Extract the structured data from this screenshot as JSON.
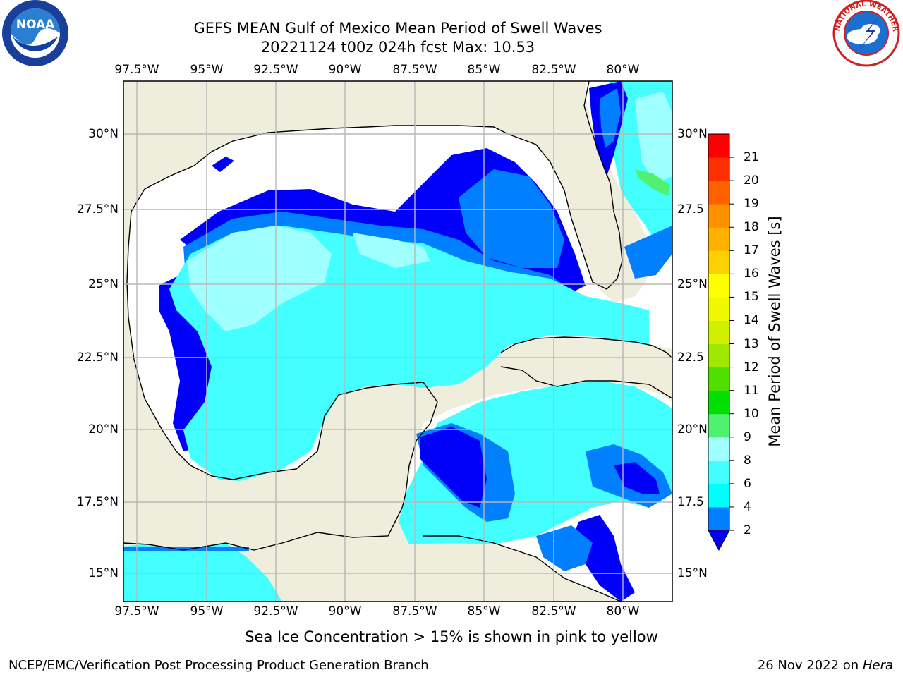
{
  "header": {
    "title": "GEFS MEAN Gulf of Mexico Mean Period of Swell Waves",
    "subtitle": "20221124 t00z 024h fcst   Max: 10.53"
  },
  "logos": {
    "left": {
      "text": "NOAA",
      "icon": "noaa-logo-icon"
    },
    "right": {
      "text": "NATIONAL WEATHER SERVICE",
      "icon": "nws-logo-icon"
    }
  },
  "map": {
    "lon_labels": [
      "97.5°W",
      "95°W",
      "92.5°W",
      "90°W",
      "87.5°W",
      "85°W",
      "82.5°W",
      "80°W"
    ],
    "lat_labels_left": [
      "30°N",
      "27.5°N",
      "25°N",
      "22.5°N",
      "20°N",
      "17.5°N",
      "15°N"
    ],
    "lat_labels_right": [
      "30°N",
      "27.5",
      "25°N",
      "22.5",
      "20°N",
      "17.5",
      "15°N"
    ],
    "lon_range": [
      -98,
      -79
    ],
    "lat_range": [
      14,
      31.8
    ],
    "gridlines": true,
    "colors": {
      "land": "#efeedd",
      "nodata": "#ffffff",
      "period_2_4": "#0000f8",
      "period_4_6": "#0080ff",
      "period_6_8": "#00ffff",
      "period_8_9": "#44ffff",
      "period_9_10": "#a0ffff"
    }
  },
  "colorbar": {
    "title": "Mean Period of Swell Waves [s]",
    "levels": [
      "2",
      "4",
      "6",
      "8",
      "9",
      "10",
      "11",
      "12",
      "13",
      "14",
      "15",
      "16",
      "17",
      "18",
      "19",
      "20",
      "21"
    ],
    "colors": [
      "#0080ff",
      "#00ffff",
      "#44ffff",
      "#a0ffff",
      "#50f070",
      "#00e000",
      "#50e000",
      "#a0e800",
      "#d0f000",
      "#f0f800",
      "#ffff00",
      "#ffd000",
      "#ffb000",
      "#ff9000",
      "#ff6000",
      "#ff3000",
      "#ff0000"
    ],
    "under_color": "#0000f8"
  },
  "footer": {
    "note": "Sea Ice Concentration > 15% is shown in pink to yellow",
    "credit": "NCEP/EMC/Verification Post Processing Product Generation Branch",
    "date": "26 Nov 2022 on",
    "system": "Hera"
  }
}
